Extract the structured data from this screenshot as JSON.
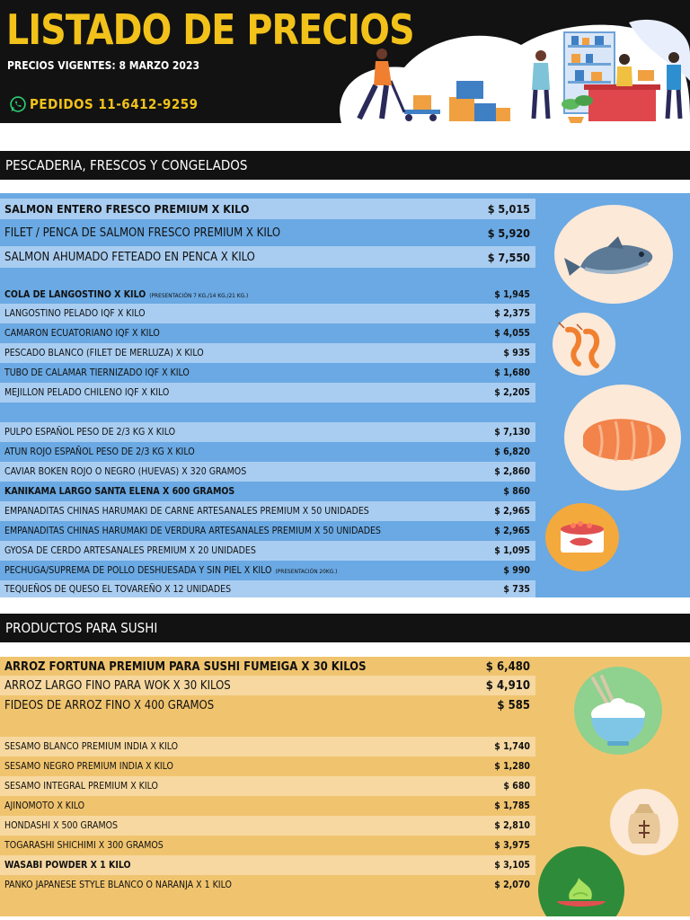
{
  "header": {
    "title": "LISTADO DE PRECIOS",
    "vigentes": "PRECIOS VIGENTES:  8 MARZO 2023",
    "pedidos": "PEDIDOS  11-6412-9259"
  },
  "sections": {
    "fish_title": "PESCADERIA, FRESCOS Y CONGELADOS",
    "sushi_title": "PRODUCTOS PARA SUSHI"
  },
  "fish_items": [
    {
      "desc": "SALMON ENTERO FRESCO PREMIUM X KILO",
      "price": "$ 5,015"
    },
    {
      "desc": "FILET / PENCA DE SALMON FRESCO PREMIUM X KILO",
      "price": "$ 5,920"
    },
    {
      "desc": "SALMON AHUMADO FETEADO EN PENCA X KILO",
      "price": "$ 7,550"
    },
    {
      "desc": "COLA DE LANGOSTINO X KILO",
      "note": "(PRESENTACIÓN 7 KG./14 KG./21 KG.)",
      "price": "$ 1,945"
    },
    {
      "desc": "LANGOSTINO PELADO IQF X KILO",
      "price": "$ 2,375"
    },
    {
      "desc": "CAMARON ECUATORIANO IQF X KILO",
      "price": "$ 4,055"
    },
    {
      "desc": "PESCADO BLANCO (FILET DE MERLUZA) X KILO",
      "price": "$ 935"
    },
    {
      "desc": "TUBO DE CALAMAR TIERNIZADO IQF X KILO",
      "price": "$ 1,680"
    },
    {
      "desc": "MEJILLON PELADO CHILENO IQF X KILO",
      "price": "$ 2,205"
    },
    {
      "desc": "PULPO ESPAÑOL PESO DE 2/3 KG X KILO",
      "price": "$ 7,130"
    },
    {
      "desc": "ATUN ROJO ESPAÑOL PESO DE 2/3 KG X KILO",
      "price": "$ 6,820"
    },
    {
      "desc": "CAVIAR BOKEN ROJO O NEGRO (HUEVAS) X 320 GRAMOS",
      "price": "$ 2,860"
    },
    {
      "desc": "KANIKAMA LARGO SANTA ELENA X 600 GRAMOS",
      "price": "$ 860"
    },
    {
      "desc": "EMPANADITAS CHINAS HARUMAKI DE CARNE ARTESANALES PREMIUM X 50 UNIDADES",
      "price": "$ 2,965"
    },
    {
      "desc": "EMPANADITAS CHINAS HARUMAKI DE VERDURA ARTESANALES PREMIUM X 50 UNIDADES",
      "price": "$ 2,965"
    },
    {
      "desc": "GYOSA DE CERDO ARTESANALES PREMIUM X 20 UNIDADES",
      "price": "$ 1,095"
    },
    {
      "desc": "PECHUGA/SUPREMA DE POLLO DESHUESADA Y SIN PIEL X KILO",
      "note": "(PRESENTACIÓN 20KG.)",
      "price": "$ 990"
    },
    {
      "desc": "TEQUEÑOS DE QUESO EL TOVAREÑO  X 12 UNIDADES",
      "price": "$ 735"
    }
  ],
  "sushi_items": [
    {
      "desc": "ARROZ FORTUNA PREMIUM PARA SUSHI FUMEIGA X 30 KILOS",
      "price": "$ 6,480"
    },
    {
      "desc": "ARROZ LARGO FINO PARA WOK X 30 KILOS",
      "price": "$ 4,910"
    },
    {
      "desc": "FIDEOS DE ARROZ FINO X 400 GRAMOS",
      "price": "$ 585"
    },
    {
      "desc": "SESAMO BLANCO PREMIUM INDIA X KILO",
      "price": "$ 1,740"
    },
    {
      "desc": "SESAMO NEGRO PREMIUM INDIA X KILO",
      "price": "$ 1,280"
    },
    {
      "desc": "SESAMO INTEGRAL PREMIUM X KILO",
      "price": "$ 680"
    },
    {
      "desc": "AJINOMOTO X KILO",
      "price": "$ 1,785"
    },
    {
      "desc": "HONDASHI X 500 GRAMOS",
      "price": "$ 2,810"
    },
    {
      "desc": "TOGARASHI SHICHIMI X 300 GRAMOS",
      "price": "$ 3,975"
    },
    {
      "desc": "WASABI POWDER X 1 KILO",
      "price": "$ 3,105"
    },
    {
      "desc": "PANKO JAPANESE STYLE BLANCO O NARANJA X 1 KILO",
      "price": "$ 2,070"
    }
  ],
  "icons": [
    "whatsapp-icon",
    "delivery-illustration",
    "fish-icon",
    "shrimp-icon",
    "salmon-fillet-icon",
    "canned-fish-icon",
    "rice-bowl-icon",
    "spice-sack-icon",
    "wasabi-icon"
  ]
}
